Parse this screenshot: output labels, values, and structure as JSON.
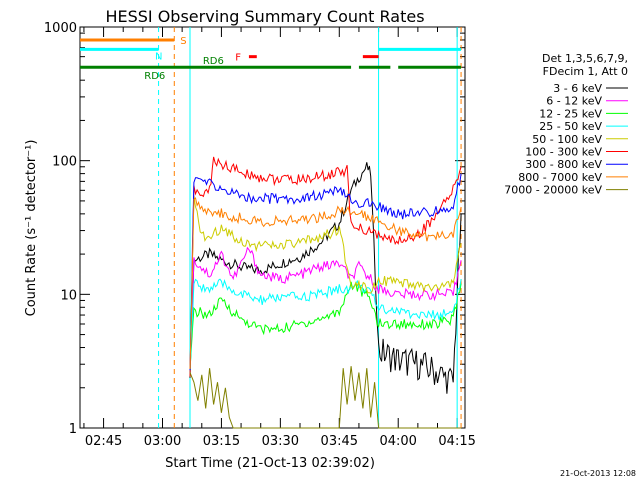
{
  "chart_data": {
    "type": "line",
    "title": "HESSI Observing Summary Count Rates",
    "xlabel": "Start Time (21-Oct-13 02:39:02)",
    "ylabel": "Count Rate (s⁻¹ detector⁻¹)",
    "xlim": [
      "02:39",
      "04:17"
    ],
    "ylim": [
      1,
      1000
    ],
    "yscale": "log",
    "x_ticks": [
      "02:45",
      "03:00",
      "03:15",
      "03:30",
      "03:45",
      "04:00",
      "04:15"
    ],
    "y_ticks": [
      "1",
      "10",
      "100",
      "1000"
    ],
    "grid": false,
    "legend_position": "right",
    "legend_header": [
      "Det 1,3,5,6,7,9,",
      "FDecim 1, Att 0"
    ],
    "footer_timestamp": "21-Oct-2013 12:08",
    "series": [
      {
        "name": "3 - 6 keV",
        "color": "#000000",
        "points": [
          [
            "03:07",
            2.6
          ],
          [
            "03:08",
            18
          ],
          [
            "03:12",
            20
          ],
          [
            "03:15",
            18
          ],
          [
            "03:20",
            16
          ],
          [
            "03:25",
            15
          ],
          [
            "03:30",
            17
          ],
          [
            "03:35",
            19
          ],
          [
            "03:40",
            24
          ],
          [
            "03:45",
            34
          ],
          [
            "03:48",
            60
          ],
          [
            "03:50",
            75
          ],
          [
            "03:52",
            90
          ],
          [
            "03:53",
            80
          ],
          [
            "03:55",
            3.8
          ],
          [
            "04:00",
            3.2
          ],
          [
            "04:05",
            3.0
          ],
          [
            "04:10",
            2.6
          ],
          [
            "04:14",
            2.2
          ],
          [
            "04:15",
            10
          ],
          [
            "04:16",
            40
          ]
        ]
      },
      {
        "name": "6 - 12 keV",
        "color": "#ff00ff",
        "points": [
          [
            "03:07",
            2.6
          ],
          [
            "03:08",
            18
          ],
          [
            "03:12",
            14
          ],
          [
            "03:15",
            20
          ],
          [
            "03:18",
            13
          ],
          [
            "03:22",
            22
          ],
          [
            "03:25",
            14
          ],
          [
            "03:30",
            13
          ],
          [
            "03:35",
            14
          ],
          [
            "03:40",
            16
          ],
          [
            "03:45",
            17
          ],
          [
            "03:48",
            13
          ],
          [
            "03:50",
            16
          ],
          [
            "03:53",
            13
          ],
          [
            "03:55",
            11
          ],
          [
            "04:00",
            10
          ],
          [
            "04:05",
            10
          ],
          [
            "04:10",
            10
          ],
          [
            "04:14",
            10
          ],
          [
            "04:16",
            18
          ]
        ]
      },
      {
        "name": "12 - 25 keV",
        "color": "#00ff00",
        "points": [
          [
            "03:07",
            2.6
          ],
          [
            "03:08",
            7.5
          ],
          [
            "03:12",
            7
          ],
          [
            "03:15",
            9
          ],
          [
            "03:20",
            6.5
          ],
          [
            "03:25",
            5.5
          ],
          [
            "03:30",
            5.5
          ],
          [
            "03:35",
            6
          ],
          [
            "03:40",
            6.5
          ],
          [
            "03:45",
            7.5
          ],
          [
            "03:48",
            12
          ],
          [
            "03:50",
            11
          ],
          [
            "03:53",
            9
          ],
          [
            "03:55",
            6
          ],
          [
            "04:00",
            6
          ],
          [
            "04:05",
            6
          ],
          [
            "04:10",
            6
          ],
          [
            "04:14",
            6.5
          ],
          [
            "04:16",
            12
          ]
        ]
      },
      {
        "name": "25 - 50 keV",
        "color": "#00ffff",
        "points": [
          [
            "03:07",
            2.6
          ],
          [
            "03:08",
            12
          ],
          [
            "03:12",
            11
          ],
          [
            "03:15",
            12
          ],
          [
            "03:20",
            10
          ],
          [
            "03:25",
            9
          ],
          [
            "03:30",
            9.5
          ],
          [
            "03:35",
            9.5
          ],
          [
            "03:40",
            10
          ],
          [
            "03:45",
            11
          ],
          [
            "03:48",
            11
          ],
          [
            "03:50",
            12
          ],
          [
            "03:53",
            10
          ],
          [
            "03:55",
            8
          ],
          [
            "04:00",
            7.5
          ],
          [
            "04:05",
            7
          ],
          [
            "04:10",
            7
          ],
          [
            "04:14",
            7.5
          ],
          [
            "04:16",
            13
          ]
        ]
      },
      {
        "name": "50 - 100 keV",
        "color": "#cccc00",
        "points": [
          [
            "03:07",
            2.6
          ],
          [
            "03:08",
            50
          ],
          [
            "03:10",
            28
          ],
          [
            "03:12",
            26
          ],
          [
            "03:15",
            32
          ],
          [
            "03:20",
            25
          ],
          [
            "03:25",
            23
          ],
          [
            "03:30",
            23
          ],
          [
            "03:35",
            24
          ],
          [
            "03:40",
            27
          ],
          [
            "03:45",
            30
          ],
          [
            "03:48",
            12
          ],
          [
            "03:50",
            12
          ],
          [
            "03:53",
            11
          ],
          [
            "03:55",
            13
          ],
          [
            "04:00",
            12
          ],
          [
            "04:05",
            11.5
          ],
          [
            "04:10",
            11
          ],
          [
            "04:14",
            12
          ],
          [
            "04:16",
            24
          ]
        ]
      },
      {
        "name": "100 - 300 keV",
        "color": "#ff0000",
        "points": [
          [
            "03:07",
            2.6
          ],
          [
            "03:08",
            60
          ],
          [
            "03:10",
            55
          ],
          [
            "03:12",
            60
          ],
          [
            "03:13",
            100
          ],
          [
            "03:15",
            95
          ],
          [
            "03:20",
            82
          ],
          [
            "03:25",
            75
          ],
          [
            "03:30",
            72
          ],
          [
            "03:35",
            72
          ],
          [
            "03:40",
            76
          ],
          [
            "03:45",
            82
          ],
          [
            "03:47",
            85
          ],
          [
            "03:48",
            32
          ],
          [
            "03:50",
            31
          ],
          [
            "03:53",
            30
          ],
          [
            "03:55",
            27
          ],
          [
            "04:00",
            25
          ],
          [
            "04:05",
            28
          ],
          [
            "04:10",
            40
          ],
          [
            "04:14",
            60
          ],
          [
            "04:16",
            90
          ]
        ]
      },
      {
        "name": "300 - 800 keV",
        "color": "#0000ff",
        "points": [
          [
            "03:07",
            2.6
          ],
          [
            "03:08",
            75
          ],
          [
            "03:12",
            67
          ],
          [
            "03:15",
            62
          ],
          [
            "03:20",
            54
          ],
          [
            "03:25",
            52
          ],
          [
            "03:30",
            52
          ],
          [
            "03:35",
            52
          ],
          [
            "03:40",
            55
          ],
          [
            "03:45",
            60
          ],
          [
            "03:48",
            50
          ],
          [
            "03:50",
            49
          ],
          [
            "03:53",
            47
          ],
          [
            "03:55",
            45
          ],
          [
            "04:00",
            40
          ],
          [
            "04:05",
            40
          ],
          [
            "04:10",
            42
          ],
          [
            "04:14",
            46
          ],
          [
            "04:16",
            80
          ]
        ]
      },
      {
        "name": "800 - 7000 keV",
        "color": "#ff7f00",
        "points": [
          [
            "03:07",
            2.6
          ],
          [
            "03:08",
            50
          ],
          [
            "03:12",
            42
          ],
          [
            "03:15",
            40
          ],
          [
            "03:20",
            37
          ],
          [
            "03:25",
            35
          ],
          [
            "03:30",
            35
          ],
          [
            "03:35",
            36
          ],
          [
            "03:40",
            38
          ],
          [
            "03:45",
            42
          ],
          [
            "03:48",
            41
          ],
          [
            "03:50",
            40
          ],
          [
            "03:53",
            38
          ],
          [
            "03:55",
            36
          ],
          [
            "04:00",
            30
          ],
          [
            "04:05",
            27
          ],
          [
            "04:10",
            27
          ],
          [
            "04:14",
            29
          ],
          [
            "04:16",
            45
          ]
        ]
      },
      {
        "name": "7000 - 20000 keV",
        "color": "#808000",
        "points": [
          [
            "03:07",
            2.6
          ],
          [
            "03:08",
            2.2
          ],
          [
            "03:09",
            1.6
          ],
          [
            "03:10",
            2.5
          ],
          [
            "03:11",
            1.4
          ],
          [
            "03:12",
            2.8
          ],
          [
            "03:13",
            1.5
          ],
          [
            "03:14",
            2.2
          ],
          [
            "03:15",
            1.3
          ],
          [
            "03:16",
            2.0
          ],
          [
            "03:17",
            1.2
          ],
          [
            "03:18",
            1.0
          ],
          [
            "03:40",
            1.0
          ],
          [
            "03:45",
            1.0
          ],
          [
            "03:46",
            2.8
          ],
          [
            "03:47",
            1.5
          ],
          [
            "03:48",
            2.9
          ],
          [
            "03:49",
            1.6
          ],
          [
            "03:50",
            2.6
          ],
          [
            "03:51",
            1.4
          ],
          [
            "03:52",
            2.8
          ],
          [
            "03:53",
            1.2
          ],
          [
            "03:54",
            2.2
          ],
          [
            "03:55",
            1.0
          ],
          [
            "04:16",
            1.0
          ]
        ]
      }
    ],
    "flags": [
      {
        "label": "S",
        "color": "#ff7f00",
        "value": 800,
        "segments": [
          [
            "02:39",
            "03:03"
          ]
        ]
      },
      {
        "label": "N",
        "color": "#00ffff",
        "value": 680,
        "segments": [
          [
            "02:39",
            "02:59"
          ],
          [
            "03:55",
            "04:16"
          ]
        ]
      },
      {
        "label": "RD6",
        "color": "#008000",
        "value": 500,
        "segments": [
          [
            "02:39",
            "03:48"
          ],
          [
            "03:50",
            "03:58"
          ],
          [
            "04:00",
            "04:16"
          ]
        ]
      },
      {
        "label": "F",
        "color": "#ff0000",
        "value": 600,
        "segments": [
          [
            "03:22",
            "03:24"
          ],
          [
            "03:51",
            "03:55"
          ]
        ]
      }
    ],
    "vertical_lines": [
      {
        "x": "03:07",
        "color": "#00ffff",
        "style": "solid"
      },
      {
        "x": "02:59",
        "color": "#00ffff",
        "style": "dashed"
      },
      {
        "x": "03:03",
        "color": "#ff7f00",
        "style": "dashed"
      },
      {
        "x": "03:55",
        "color": "#00ffff",
        "style": "solid"
      },
      {
        "x": "04:15",
        "color": "#00ffff",
        "style": "solid"
      },
      {
        "x": "04:16",
        "color": "#ff7f00",
        "style": "dashed"
      }
    ],
    "annotations": [
      "RD6",
      "F",
      "S",
      "N",
      "RD6"
    ]
  }
}
